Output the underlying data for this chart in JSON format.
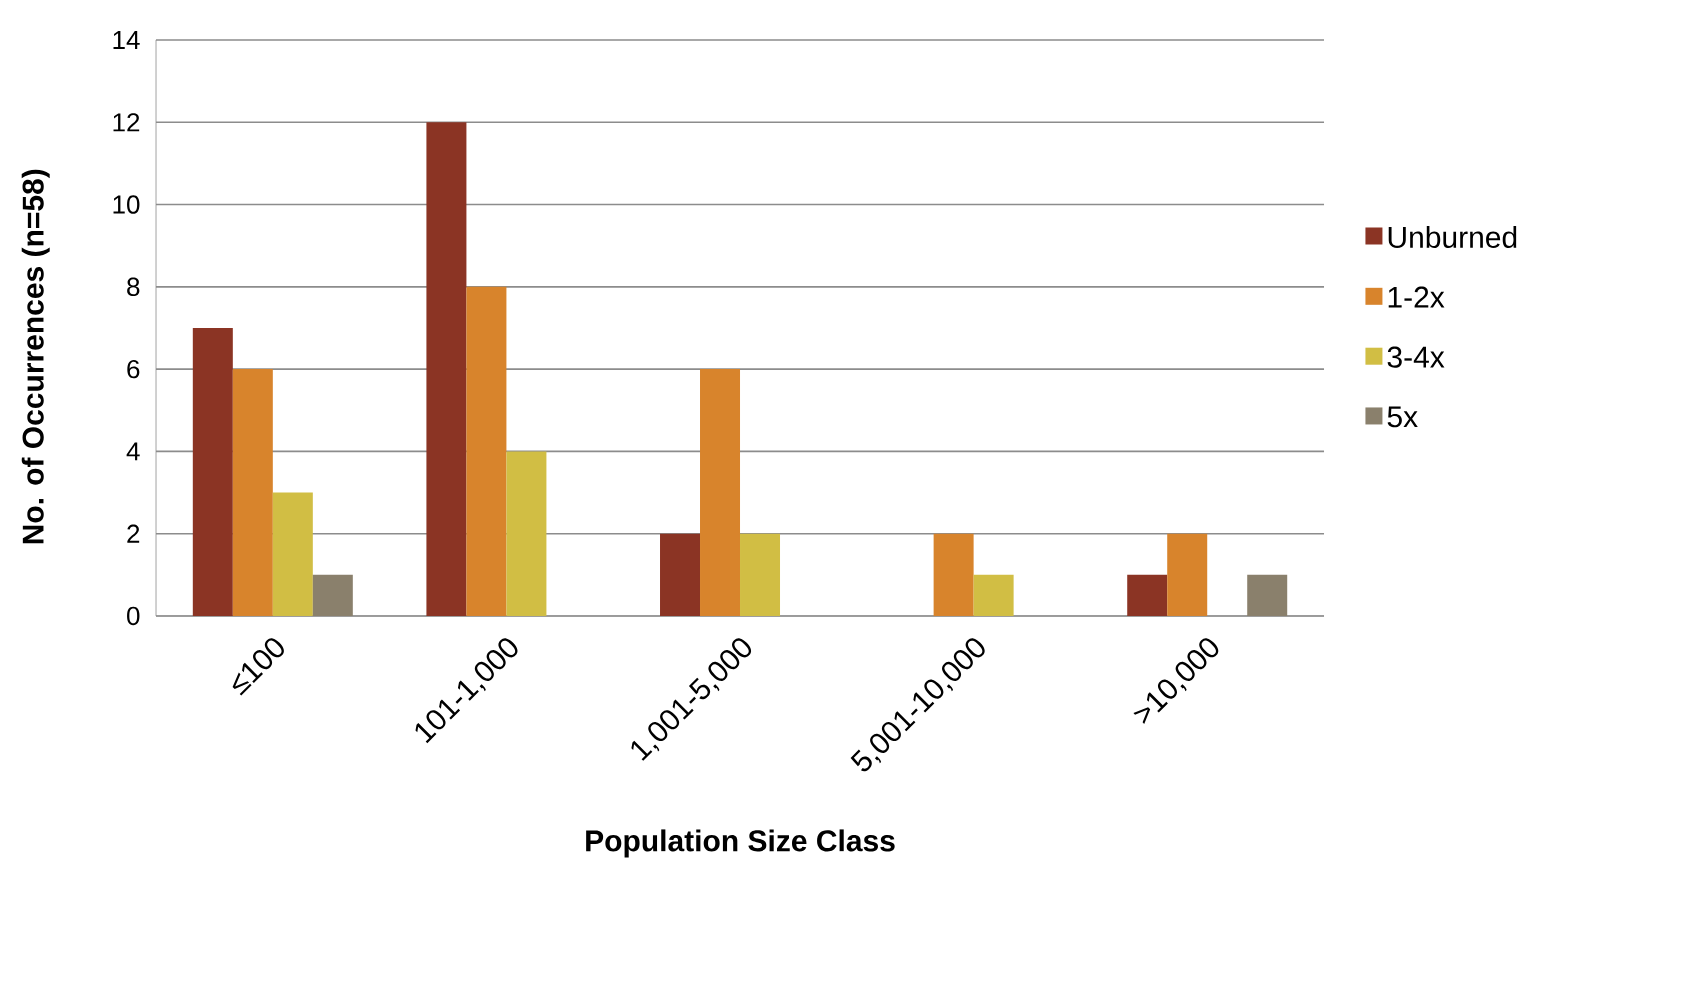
{
  "chart_data": {
    "type": "bar",
    "xlabel": "Population Size Class",
    "ylabel": "No. of Occurrences (n=58)",
    "categories": [
      "≤100",
      "101-1,000",
      "1,001-5,000",
      "5,001-10,000",
      ">10,000"
    ],
    "series": [
      {
        "name": "Unburned",
        "color": "#8b3424",
        "values": [
          7,
          12,
          2,
          0,
          1
        ]
      },
      {
        "name": "1-2x",
        "color": "#d8842c",
        "values": [
          6,
          8,
          6,
          2,
          2
        ]
      },
      {
        "name": "3-4x",
        "color": "#d1be44",
        "values": [
          3,
          4,
          2,
          1,
          0
        ]
      },
      {
        "name": "5x",
        "color": "#8a806c",
        "values": [
          1,
          0,
          0,
          0,
          1
        ]
      }
    ],
    "ylim": [
      0,
      14
    ],
    "yticks": [
      0,
      2,
      4,
      6,
      8,
      10,
      12,
      14
    ],
    "grid": "y",
    "legend": "right"
  }
}
